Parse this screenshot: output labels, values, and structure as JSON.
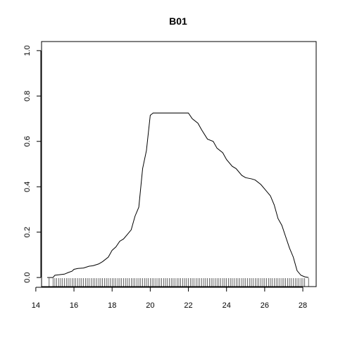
{
  "chart_data": {
    "type": "line",
    "title": "B01",
    "xlabel": "",
    "ylabel": "",
    "xlim": [
      14.3,
      28.7
    ],
    "ylim": [
      -0.04,
      1.04
    ],
    "x_ticks": [
      14,
      16,
      18,
      20,
      22,
      24,
      26,
      28
    ],
    "x_tick_labels": [
      "14",
      "16",
      "18",
      "20",
      "22",
      "24",
      "26",
      "28"
    ],
    "y_ticks": [
      0.0,
      0.2,
      0.4,
      0.6,
      0.8,
      1.0
    ],
    "y_tick_labels": [
      "0.0",
      "0.2",
      "0.4",
      "0.6",
      "0.8",
      "1.0"
    ],
    "grid": false,
    "frame": true,
    "series": [
      {
        "x": [
          14.6,
          14.9,
          15.0,
          15.2,
          15.5,
          15.7,
          15.9,
          16.0,
          16.2,
          16.5,
          16.8,
          17.0,
          17.3,
          17.5,
          17.8,
          18.0,
          18.2,
          18.4,
          18.6,
          18.8,
          19.0,
          19.2,
          19.4,
          19.6,
          19.8,
          20.0,
          20.15,
          20.5,
          21.0,
          21.5,
          22.0,
          22.2,
          22.5,
          22.7,
          23.0,
          23.3,
          23.5,
          23.8,
          24.0,
          24.3,
          24.5,
          24.8,
          25.0,
          25.3,
          25.5,
          25.8,
          26.0,
          26.3,
          26.5,
          26.7,
          26.9,
          27.1,
          27.3,
          27.5,
          27.7,
          27.9,
          28.1,
          28.3
        ],
        "y": [
          0.0,
          0.0,
          0.01,
          0.012,
          0.015,
          0.022,
          0.028,
          0.036,
          0.04,
          0.042,
          0.05,
          0.052,
          0.06,
          0.07,
          0.09,
          0.12,
          0.135,
          0.16,
          0.17,
          0.19,
          0.21,
          0.27,
          0.31,
          0.48,
          0.56,
          0.715,
          0.725,
          0.725,
          0.725,
          0.725,
          0.725,
          0.7,
          0.68,
          0.65,
          0.61,
          0.6,
          0.57,
          0.55,
          0.52,
          0.49,
          0.48,
          0.45,
          0.44,
          0.435,
          0.43,
          0.41,
          0.39,
          0.36,
          0.32,
          0.26,
          0.23,
          0.18,
          0.13,
          0.09,
          0.03,
          0.01,
          0.003,
          0.0
        ]
      }
    ],
    "rug": [
      14.7,
      14.9,
      15.0,
      15.1,
      15.2,
      15.3,
      15.4,
      15.5,
      15.6,
      15.7,
      15.8,
      15.9,
      16.0,
      16.1,
      16.2,
      16.3,
      16.4,
      16.5,
      16.6,
      16.7,
      16.8,
      16.9,
      17.0,
      17.1,
      17.2,
      17.3,
      17.4,
      17.5,
      17.6,
      17.7,
      17.8,
      17.9,
      18.0,
      18.1,
      18.2,
      18.3,
      18.4,
      18.5,
      18.6,
      18.7,
      18.8,
      18.9,
      19.0,
      19.1,
      19.2,
      19.3,
      19.4,
      19.5,
      19.6,
      19.7,
      19.8,
      19.9,
      20.0,
      20.1,
      20.2,
      20.3,
      20.4,
      20.5,
      20.6,
      20.7,
      20.8,
      20.9,
      21.0,
      21.1,
      21.2,
      21.3,
      21.4,
      21.5,
      21.6,
      21.7,
      21.8,
      21.9,
      22.0,
      22.1,
      22.2,
      22.3,
      22.4,
      22.5,
      22.6,
      22.7,
      22.8,
      22.9,
      23.0,
      23.1,
      23.2,
      23.3,
      23.4,
      23.5,
      23.6,
      23.7,
      23.8,
      23.9,
      24.0,
      24.1,
      24.2,
      24.3,
      24.4,
      24.5,
      24.6,
      24.7,
      24.8,
      24.9,
      25.0,
      25.1,
      25.2,
      25.3,
      25.4,
      25.5,
      25.6,
      25.7,
      25.8,
      25.9,
      26.0,
      26.1,
      26.2,
      26.3,
      26.4,
      26.5,
      26.6,
      26.7,
      26.8,
      26.9,
      27.0,
      27.1,
      27.2,
      27.3,
      27.4,
      27.5,
      27.6,
      27.7,
      27.8,
      27.9,
      28.0,
      28.1,
      28.3
    ]
  }
}
